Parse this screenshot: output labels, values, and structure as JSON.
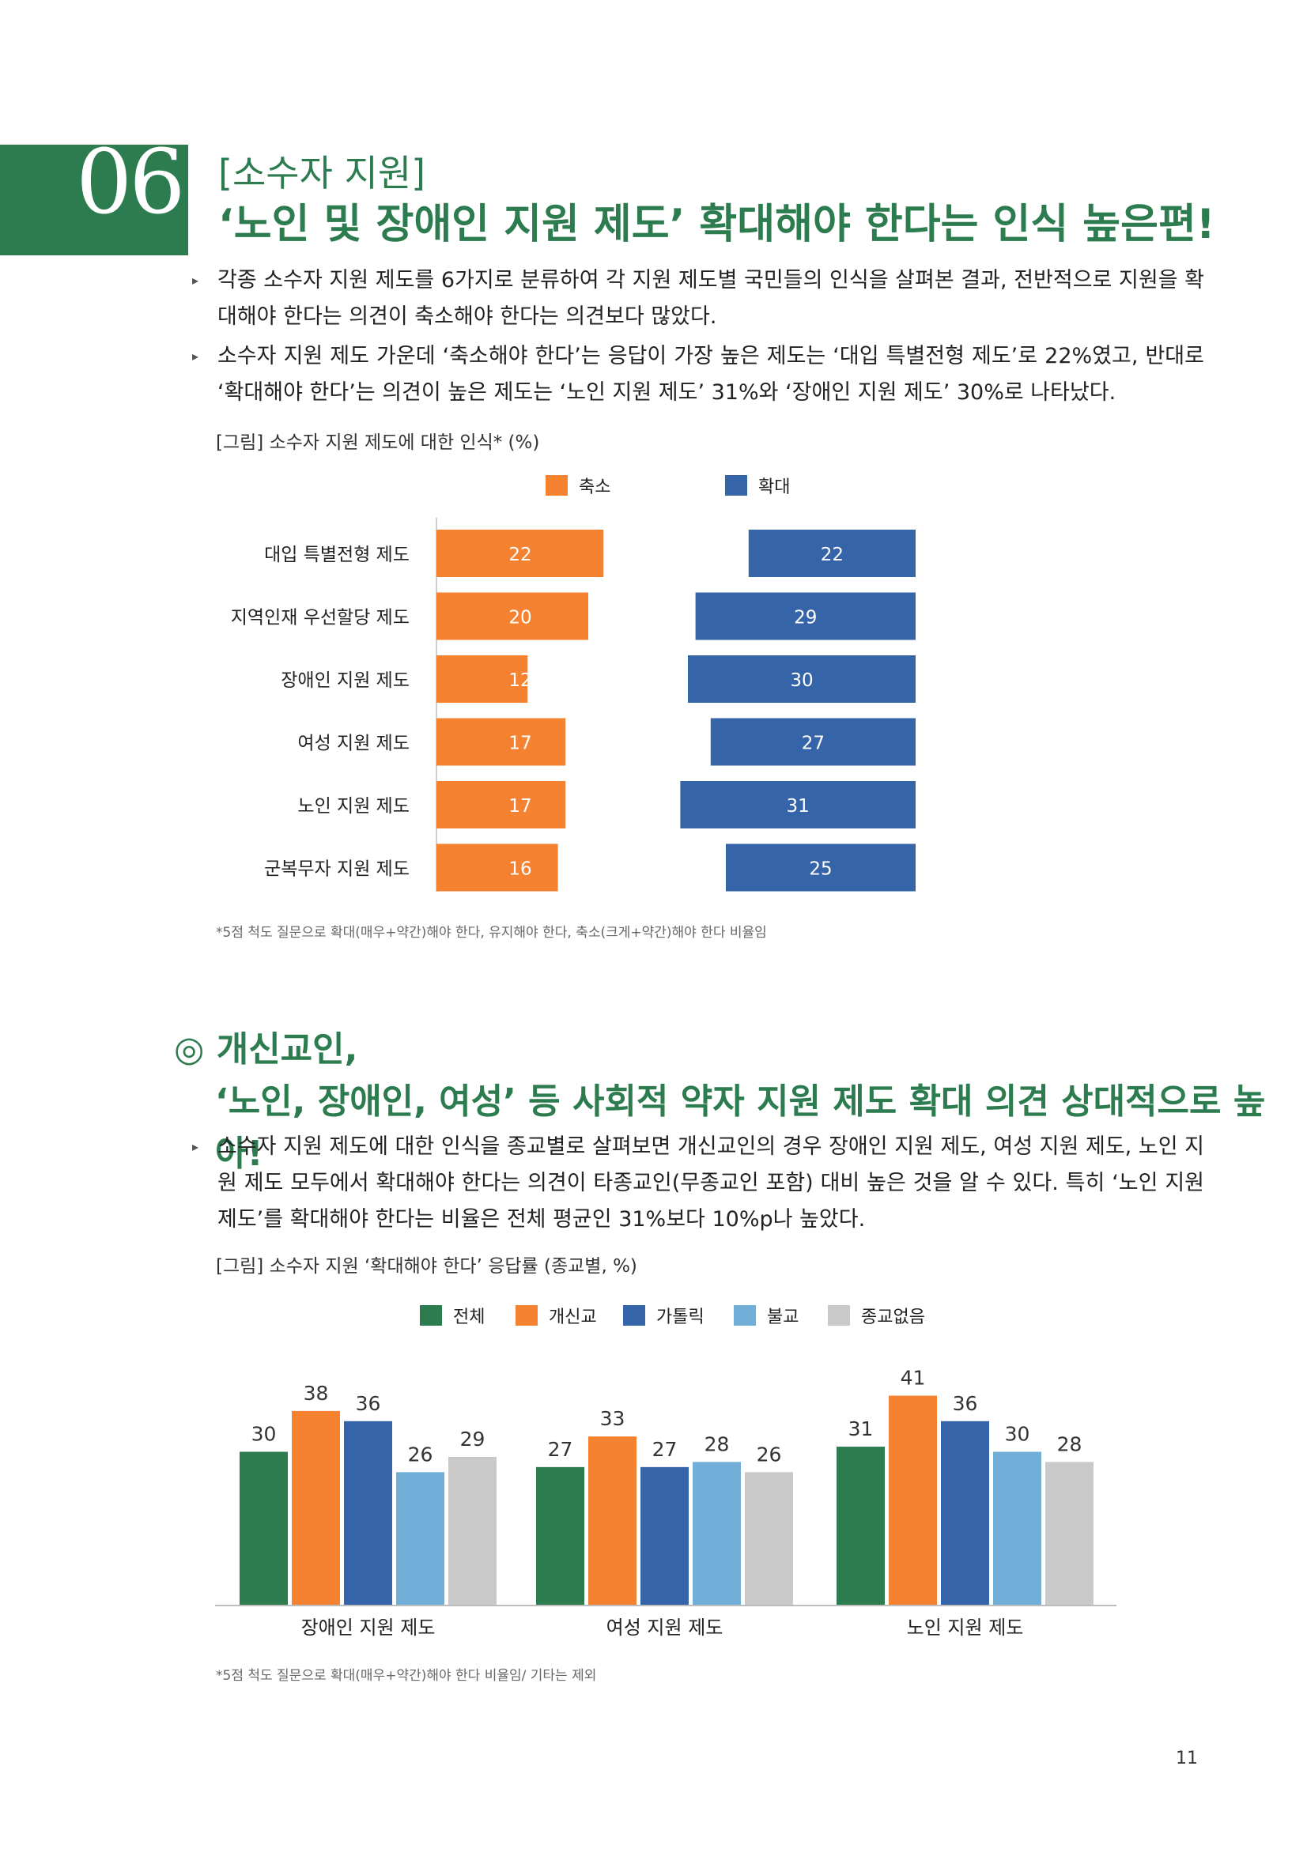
{
  "header": {
    "number": "06",
    "label": "[소수자 지원]",
    "title": "‘노인 및 장애인 지원 제도’ 확대해야 한다는 인식 높은편!"
  },
  "section1": {
    "bullets": [
      "각종 소수자 지원 제도를 6가지로 분류하여 각 지원 제도별 국민들의 인식을 살펴본 결과, 전반적으로 지원을 확대해야 한다는 의견이 축소해야 한다는 의견보다 많았다.",
      "소수자 지원 제도 가운데 ‘축소해야 한다’는 응답이 가장 높은 제도는 ‘대입 특별전형 제도’로 22%였고, 반대로 ‘확대해야 한다’는 의견이 높은 제도는 ‘노인 지원 제도’ 31%와 ‘장애인 지원 제도’ 30%로 나타났다."
    ],
    "caption": "[그림] 소수자 지원 제도에 대한 인식* (%)",
    "note": "*5점 척도 질문으로 확대(매우+약간)해야 한다, 유지해야 한다, 축소(크게+약간)해야 한다 비율임"
  },
  "section2": {
    "heading_line1": "◎ 개신교인,",
    "heading_line2": "‘노인, 장애인, 여성’ 등 사회적 약자 지원 제도 확대 의견 상대적으로 높아!",
    "bullets": [
      "소수자 지원 제도에 대한 인식을 종교별로 살펴보면 개신교인의 경우 장애인 지원 제도, 여성 지원 제도, 노인 지원 제도 모두에서 확대해야 한다는 의견이 타종교인(무종교인 포함) 대비 높은 것을 알 수 있다. 특히 ‘노인 지원 제도’를 확대해야 한다는 비율은 전체 평균인 31%보다 10%p나 높았다."
    ],
    "caption": "[그림] 소수자 지원 ‘확대해야 한다’ 응답률 (종교별, %)",
    "note": "*5점 척도 질문으로 확대(매우+약간)해야 한다 비율임/ 기타는 제외"
  },
  "page_number": "11",
  "colors": {
    "green": "#2d7c50",
    "orange": "#f58231",
    "blue": "#3565a8",
    "lightblue": "#72afd8",
    "gray": "#c9c9c9"
  },
  "chart_data": [
    {
      "type": "bar",
      "orientation": "horizontal-diverging",
      "title": "[그림] 소수자 지원 제도에 대한 인식* (%)",
      "categories": [
        "대입 특별전형 제도",
        "지역인재 우선할당 제도",
        "장애인 지원 제도",
        "여성 지원 제도",
        "노인 지원 제도",
        "군복무자 지원 제도"
      ],
      "series": [
        {
          "name": "축소",
          "values": [
            22,
            20,
            12,
            17,
            17,
            16
          ],
          "color": "#f58231"
        },
        {
          "name": "확대",
          "values": [
            22,
            29,
            30,
            27,
            31,
            25
          ],
          "color": "#3565a8"
        }
      ],
      "legend": "top"
    },
    {
      "type": "bar",
      "title": "[그림] 소수자 지원 ‘확대해야 한다’ 응답률 (종교별, %)",
      "categories": [
        "장애인 지원 제도",
        "여성 지원 제도",
        "노인 지원 제도"
      ],
      "series": [
        {
          "name": "전체",
          "values": [
            30,
            27,
            31
          ],
          "color": "#2d7c50"
        },
        {
          "name": "개신교",
          "values": [
            38,
            33,
            41
          ],
          "color": "#f58231"
        },
        {
          "name": "가톨릭",
          "values": [
            36,
            27,
            36
          ],
          "color": "#3565a8"
        },
        {
          "name": "불교",
          "values": [
            26,
            28,
            30
          ],
          "color": "#72afd8"
        },
        {
          "name": "종교없음",
          "values": [
            29,
            26,
            28
          ],
          "color": "#c9c9c9"
        }
      ],
      "legend": "top"
    }
  ]
}
